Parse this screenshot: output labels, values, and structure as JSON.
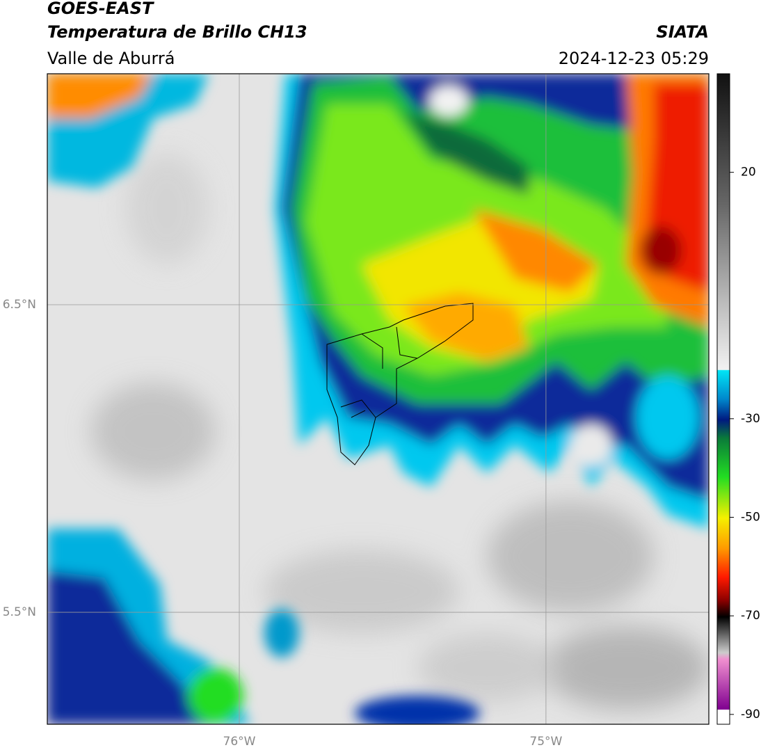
{
  "header": {
    "title": "GOES-EAST",
    "subtitle": "Temperatura de Brillo CH13",
    "region": "Valle de Aburrá",
    "source": "SIATA",
    "timestamp": "2024-12-23 05:29"
  },
  "map": {
    "xlim": [
      -76.626,
      -74.469
    ],
    "ylim": [
      5.136,
      7.251
    ],
    "xticks": [
      {
        "value": -76,
        "label": "76°W"
      },
      {
        "value": -75,
        "label": "75°W"
      }
    ],
    "yticks": [
      {
        "value": 6.5,
        "label": "6.5°N"
      },
      {
        "value": 5.5,
        "label": "5.5°N"
      }
    ],
    "grid": true
  },
  "colorbar": {
    "lim": [
      -92,
      40
    ],
    "ticks": [
      20,
      -30,
      -50,
      -70,
      -90
    ]
  }
}
